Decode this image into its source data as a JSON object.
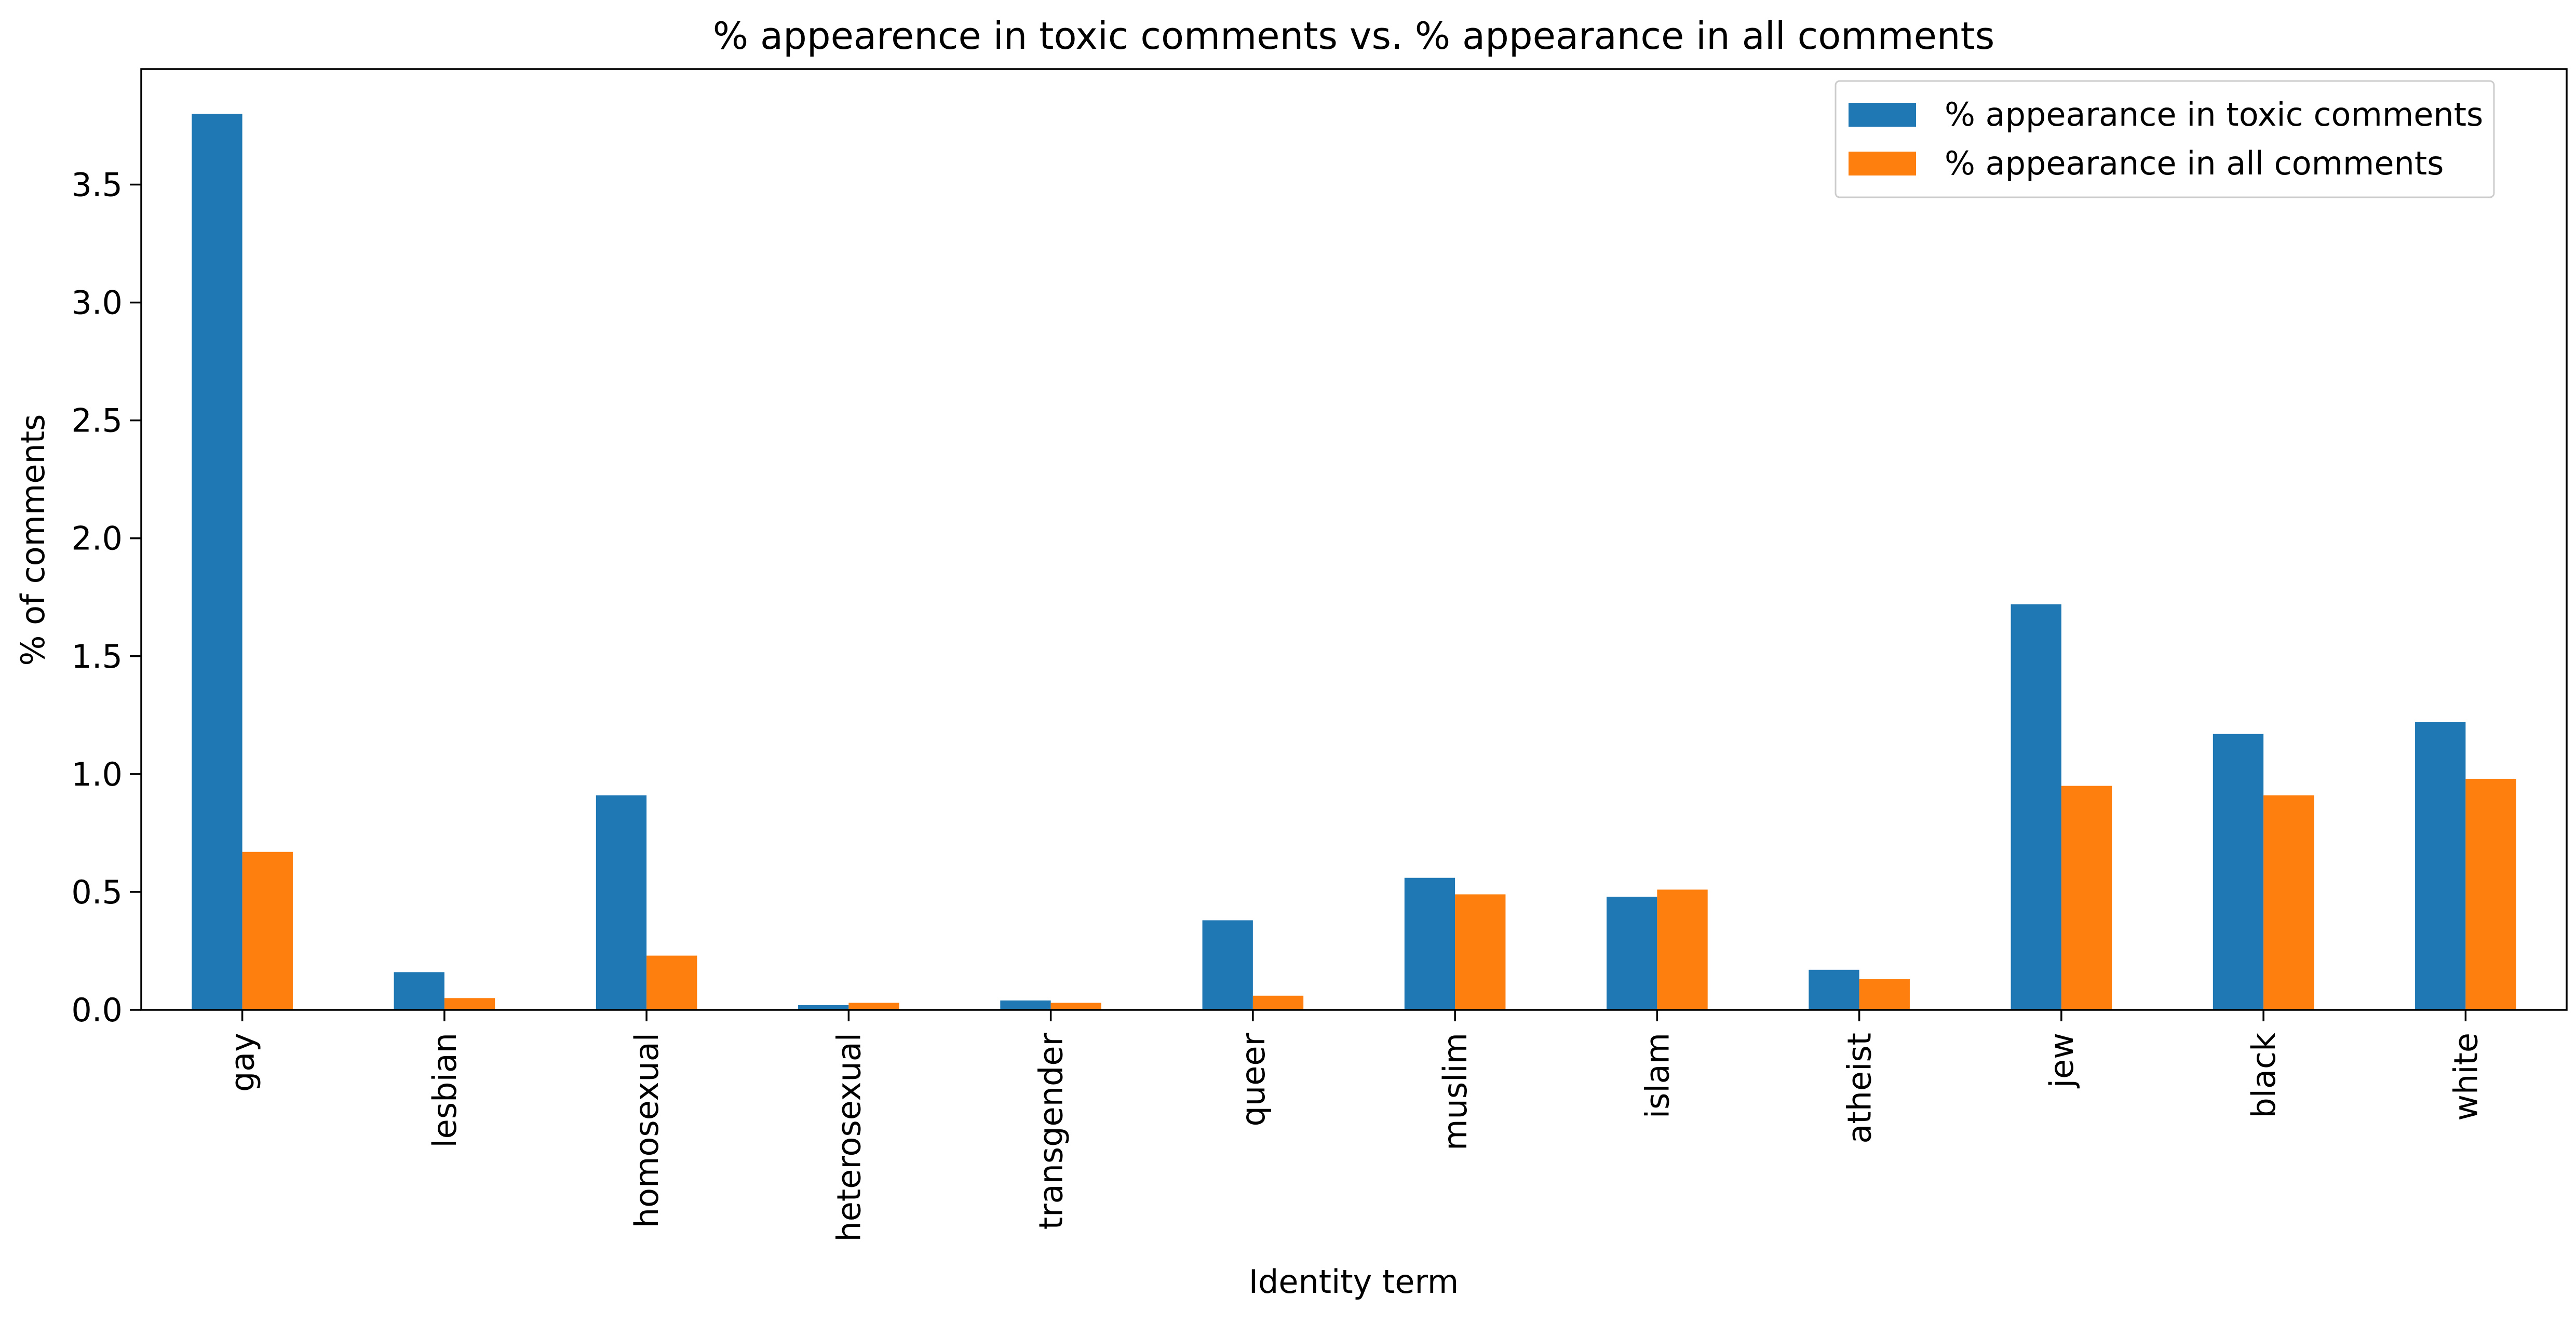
{
  "chart_data": {
    "type": "bar",
    "title": "% appearence in toxic comments vs. % appearance in all comments",
    "xlabel": "Identity term",
    "ylabel": "% of comments",
    "categories": [
      "gay",
      "lesbian",
      "homosexual",
      "heterosexual",
      "transgender",
      "queer",
      "muslim",
      "islam",
      "atheist",
      "jew",
      "black",
      "white"
    ],
    "series": [
      {
        "name": "% appearance in toxic comments",
        "color": "#1f77b4",
        "values": [
          3.8,
          0.16,
          0.91,
          0.02,
          0.04,
          0.38,
          0.56,
          0.48,
          0.17,
          1.72,
          1.17,
          1.22
        ]
      },
      {
        "name": "% appearance in all comments",
        "color": "#ff7f0e",
        "values": [
          0.67,
          0.05,
          0.23,
          0.03,
          0.03,
          0.06,
          0.49,
          0.51,
          0.13,
          0.95,
          0.91,
          0.98
        ]
      }
    ],
    "ylim": [
      0,
      3.99
    ],
    "yticks": [
      0.0,
      0.5,
      1.0,
      1.5,
      2.0,
      2.5,
      3.0,
      3.5
    ],
    "ytick_labels": [
      "0.0",
      "0.5",
      "1.0",
      "1.5",
      "2.0",
      "2.5",
      "3.0",
      "3.5"
    ],
    "grid": false,
    "legend_position": "top-right"
  }
}
